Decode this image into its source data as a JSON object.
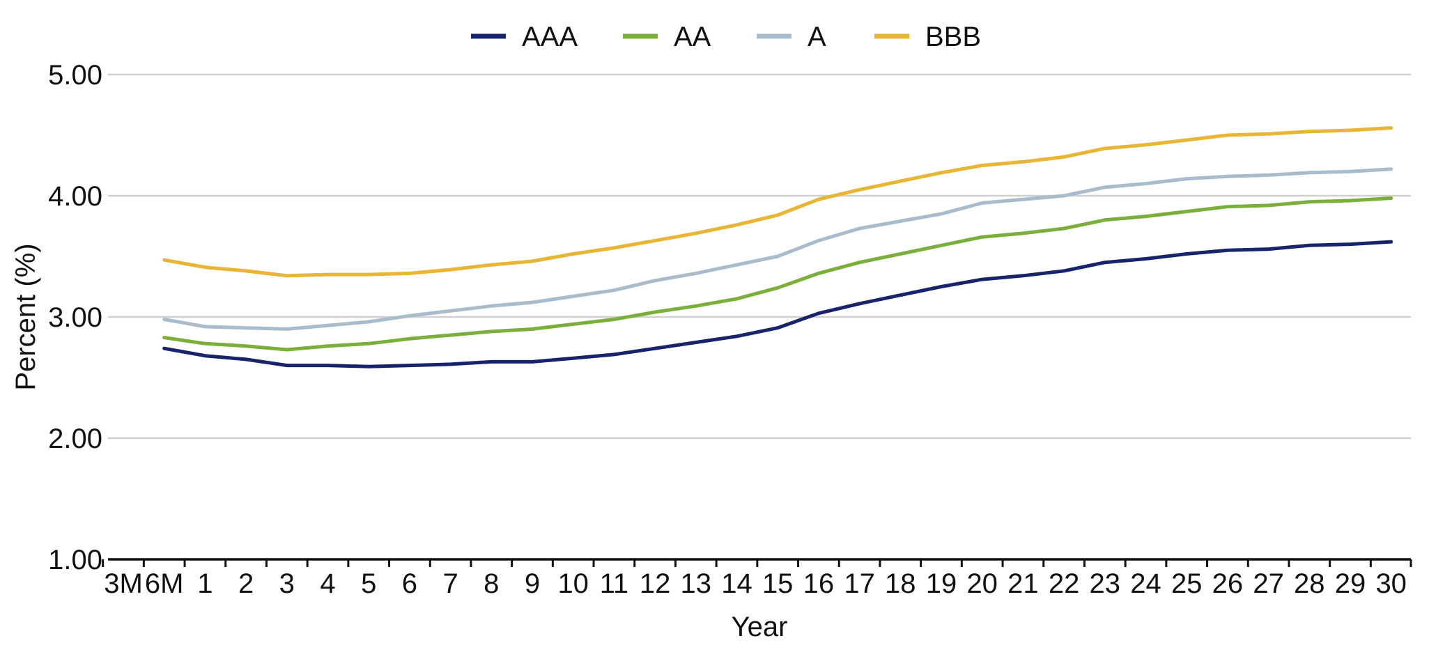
{
  "chart_data": {
    "type": "line",
    "title": "",
    "xlabel": "Year",
    "ylabel": "Percent (%)",
    "ylim": [
      1.0,
      5.0
    ],
    "yticks": [
      "5.00",
      "4.00",
      "3.00",
      "2.00",
      "1.00"
    ],
    "categories": [
      "3M",
      "6M",
      "1",
      "2",
      "3",
      "4",
      "5",
      "6",
      "7",
      "8",
      "9",
      "10",
      "11",
      "12",
      "13",
      "14",
      "15",
      "16",
      "17",
      "18",
      "19",
      "20",
      "21",
      "22",
      "23",
      "24",
      "25",
      "26",
      "27",
      "28",
      "29",
      "30"
    ],
    "grid": true,
    "legend_position": "top-center",
    "series": [
      {
        "name": "AAA",
        "color": "#17246b",
        "values": [
          null,
          2.74,
          2.68,
          2.65,
          2.6,
          2.6,
          2.59,
          2.6,
          2.61,
          2.63,
          2.63,
          2.66,
          2.69,
          2.74,
          2.79,
          2.84,
          2.91,
          3.03,
          3.11,
          3.18,
          3.25,
          3.31,
          3.34,
          3.38,
          3.45,
          3.48,
          3.52,
          3.55,
          3.56,
          3.59,
          3.6,
          3.62
        ]
      },
      {
        "name": "AA",
        "color": "#7aaf3c",
        "values": [
          null,
          2.83,
          2.78,
          2.76,
          2.73,
          2.76,
          2.78,
          2.82,
          2.85,
          2.88,
          2.9,
          2.94,
          2.98,
          3.04,
          3.09,
          3.15,
          3.24,
          3.36,
          3.45,
          3.52,
          3.59,
          3.66,
          3.69,
          3.73,
          3.8,
          3.83,
          3.87,
          3.91,
          3.92,
          3.95,
          3.96,
          3.98
        ]
      },
      {
        "name": "A",
        "color": "#a9bccb",
        "values": [
          null,
          2.98,
          2.92,
          2.91,
          2.9,
          2.93,
          2.96,
          3.01,
          3.05,
          3.09,
          3.12,
          3.17,
          3.22,
          3.3,
          3.36,
          3.43,
          3.5,
          3.63,
          3.73,
          3.79,
          3.85,
          3.94,
          3.97,
          4.0,
          4.07,
          4.1,
          4.14,
          4.16,
          4.17,
          4.19,
          4.2,
          4.22
        ]
      },
      {
        "name": "BBB",
        "color": "#e8b534",
        "values": [
          null,
          3.47,
          3.41,
          3.38,
          3.34,
          3.35,
          3.35,
          3.36,
          3.39,
          3.43,
          3.46,
          3.52,
          3.57,
          3.63,
          3.69,
          3.76,
          3.84,
          3.97,
          4.05,
          4.12,
          4.19,
          4.25,
          4.28,
          4.32,
          4.39,
          4.42,
          4.46,
          4.5,
          4.51,
          4.53,
          4.54,
          4.56
        ]
      }
    ]
  }
}
